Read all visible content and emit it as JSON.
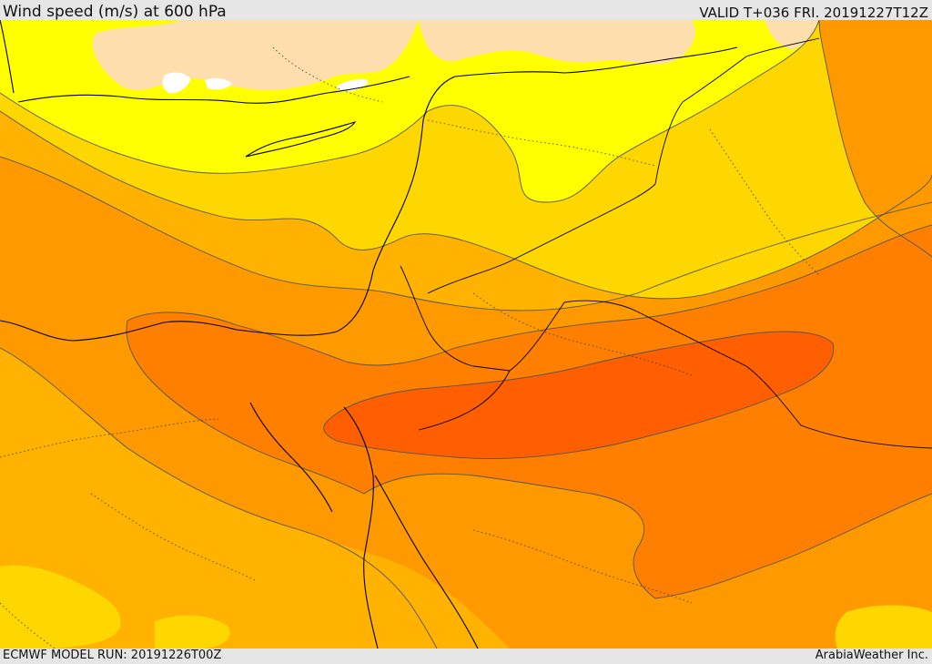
{
  "header": {
    "title": "Wind speed (m/s) at 600 hPa",
    "valid": "VALID T+036 FRI. 20191227T12Z"
  },
  "footer": {
    "model_run": "ECMWF MODEL RUN: 20191226T00Z",
    "credit": "ArabiaWeather Inc."
  },
  "colors": {
    "band_0_10": "#ffdead",
    "band_10_15": "#ffff00",
    "band_15_20": "#ffd700",
    "band_20_25": "#ffb300",
    "band_25_30": "#ff9900",
    "band_30_35": "#ff7f00",
    "band_35_40": "#ff5f00",
    "contour": "#555555",
    "border": "#000000",
    "land_ice": "#ffffff"
  }
}
